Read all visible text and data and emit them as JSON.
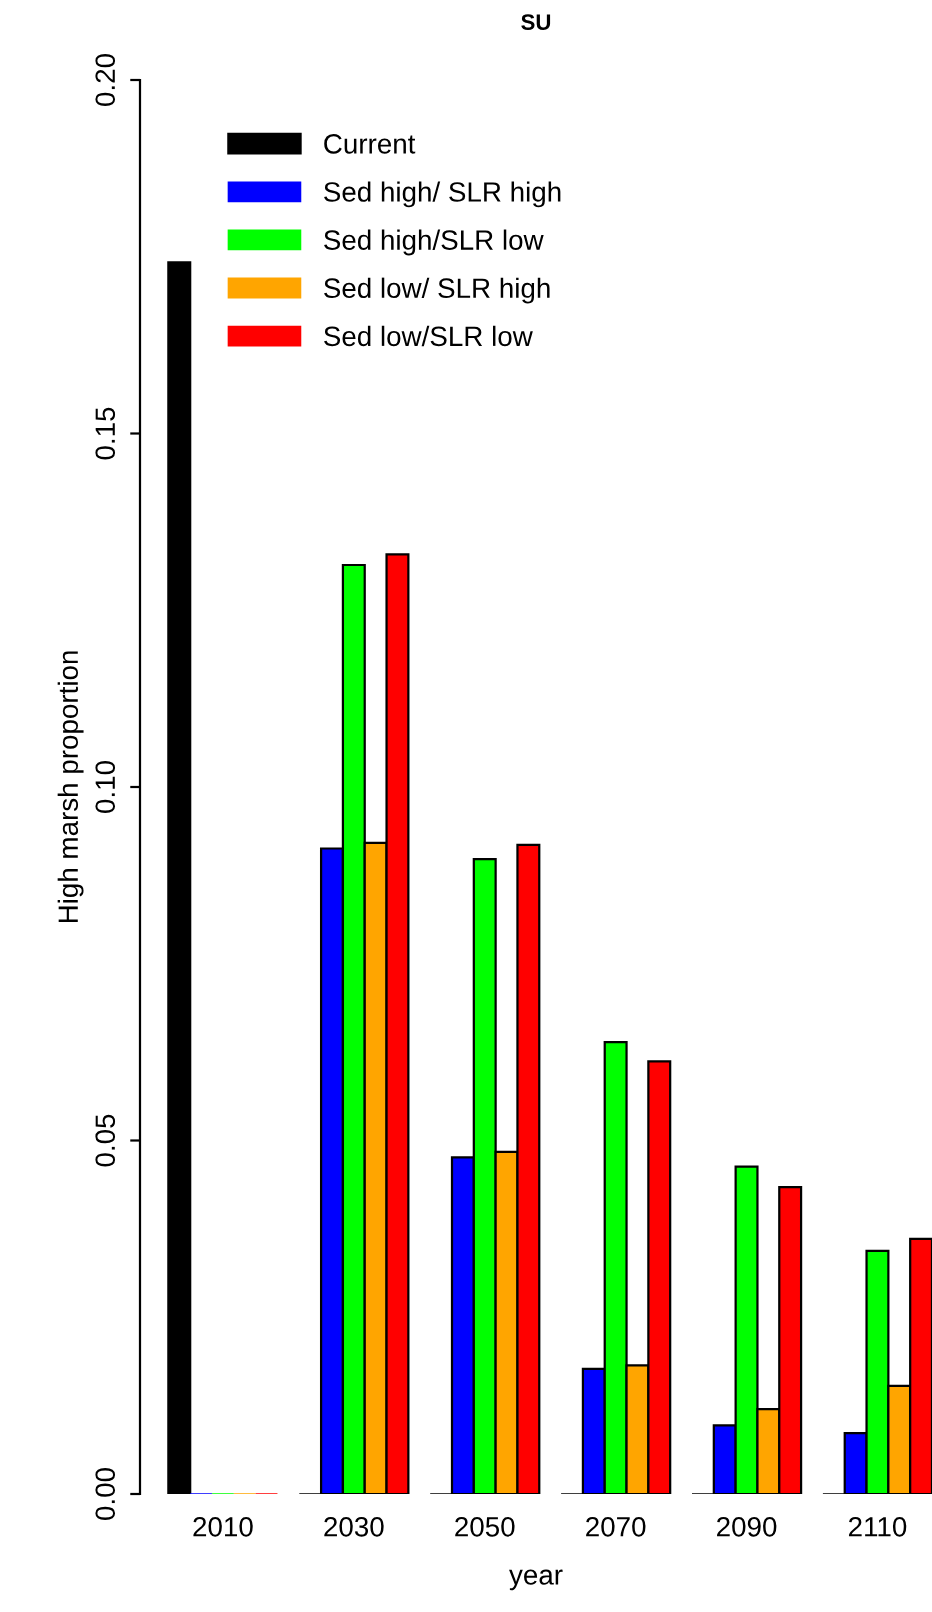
{
  "chart_data": {
    "type": "bar",
    "title": "SU",
    "xlabel": "year",
    "ylabel": "High marsh proportion",
    "categories": [
      "2010",
      "2030",
      "2050",
      "2070",
      "2090",
      "2110"
    ],
    "series": [
      {
        "name": "Current",
        "color": "#000000",
        "values": [
          0.1742,
          0,
          0,
          0,
          0,
          0
        ]
      },
      {
        "name": "Sed high/ SLR high",
        "color": "#0000ff",
        "values": [
          0,
          0.0913,
          0.0476,
          0.0177,
          0.0097,
          0.0086
        ]
      },
      {
        "name": "Sed high/SLR low",
        "color": "#00ff00",
        "values": [
          0,
          0.1314,
          0.0898,
          0.0639,
          0.0463,
          0.0344
        ]
      },
      {
        "name": "Sed low/ SLR high",
        "color": "#ffa500",
        "values": [
          0,
          0.0921,
          0.0484,
          0.0182,
          0.012,
          0.0153
        ]
      },
      {
        "name": "Sed low/SLR low",
        "color": "#ff0000",
        "values": [
          0,
          0.1329,
          0.0918,
          0.0612,
          0.0434,
          0.0361
        ]
      }
    ],
    "ylim": [
      0,
      0.2
    ],
    "yticks": [
      {
        "value": 0,
        "label": "0.00"
      },
      {
        "value": 0.05,
        "label": "0.05"
      },
      {
        "value": 0.1,
        "label": "0.10"
      },
      {
        "value": 0.15,
        "label": "0.15"
      },
      {
        "value": 0.2,
        "label": "0.20"
      }
    ],
    "grid": false,
    "legend": "top left"
  }
}
